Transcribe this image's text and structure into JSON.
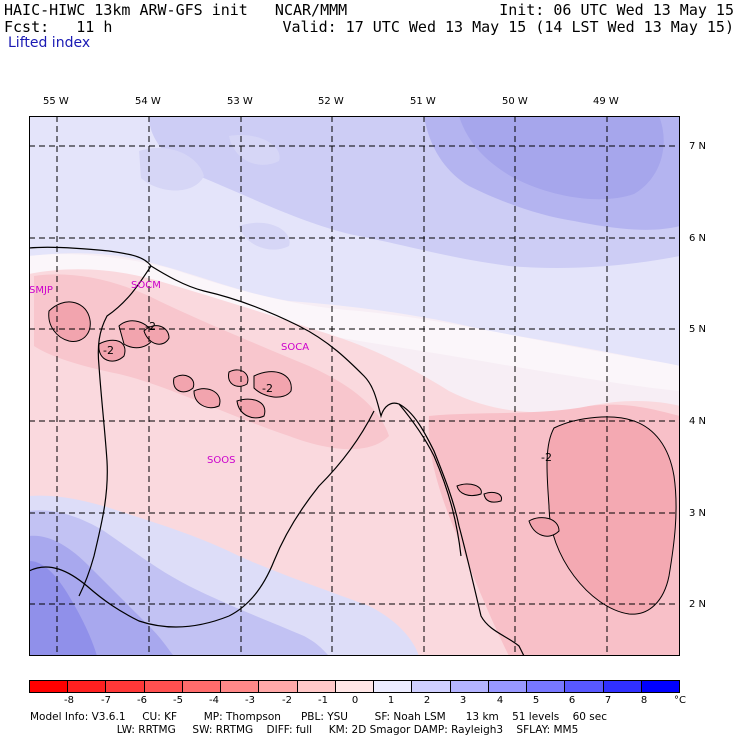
{
  "header": {
    "line1_left": "HAIC-HIWC 13km ARW-GFS init   NCAR/MMM",
    "line1_right": "Init: 06 UTC Wed 13 May 15",
    "line2_left": "Fcst:   11 h",
    "line2_right": "Valid: 17 UTC Wed 13 May 15 (14 LST Wed 13 May 15)",
    "field_name": "Lifted index"
  },
  "longitude_labels": [
    "55 W",
    "54 W",
    "53 W",
    "52 W",
    "51 W",
    "50 W",
    "49 W"
  ],
  "latitude_labels": [
    "7 N",
    "6 N",
    "5 N",
    "4 N",
    "3 N",
    "2 N"
  ],
  "station_labels": [
    "SMJP",
    "SOCM",
    "SOCA",
    "SOOS"
  ],
  "contour_labels": [
    "-2",
    "-2",
    "-2",
    "-2"
  ],
  "colorbar": {
    "ticks": [
      "-8",
      "-7",
      "-6",
      "-5",
      "-4",
      "-3",
      "-2",
      "-1",
      "0",
      "1",
      "2",
      "3",
      "4",
      "5",
      "6",
      "7",
      "8"
    ],
    "unit": "°C",
    "colors": [
      "#ff0000",
      "#ff2020",
      "#ff3838",
      "#ff5050",
      "#ff6c6c",
      "#ff8888",
      "#ffa8a8",
      "#ffc8c8",
      "#ffe6e6",
      "#ececff",
      "#d0d0ff",
      "#b4b4ff",
      "#9898ff",
      "#7878ff",
      "#5858ff",
      "#3030ff",
      "#0000ff"
    ]
  },
  "footer": {
    "line1": "Model Info: V3.6.1     CU: KF        MP: Thompson      PBL: YSU        SF: Noah LSM      13 km    51 levels    60 sec",
    "line2": "                          LW: RRTMG     SW: RRTMG    DIFF: full     KM: 2D Smagor DAMP: Rayleigh3    SFLAY: MM5"
  }
}
